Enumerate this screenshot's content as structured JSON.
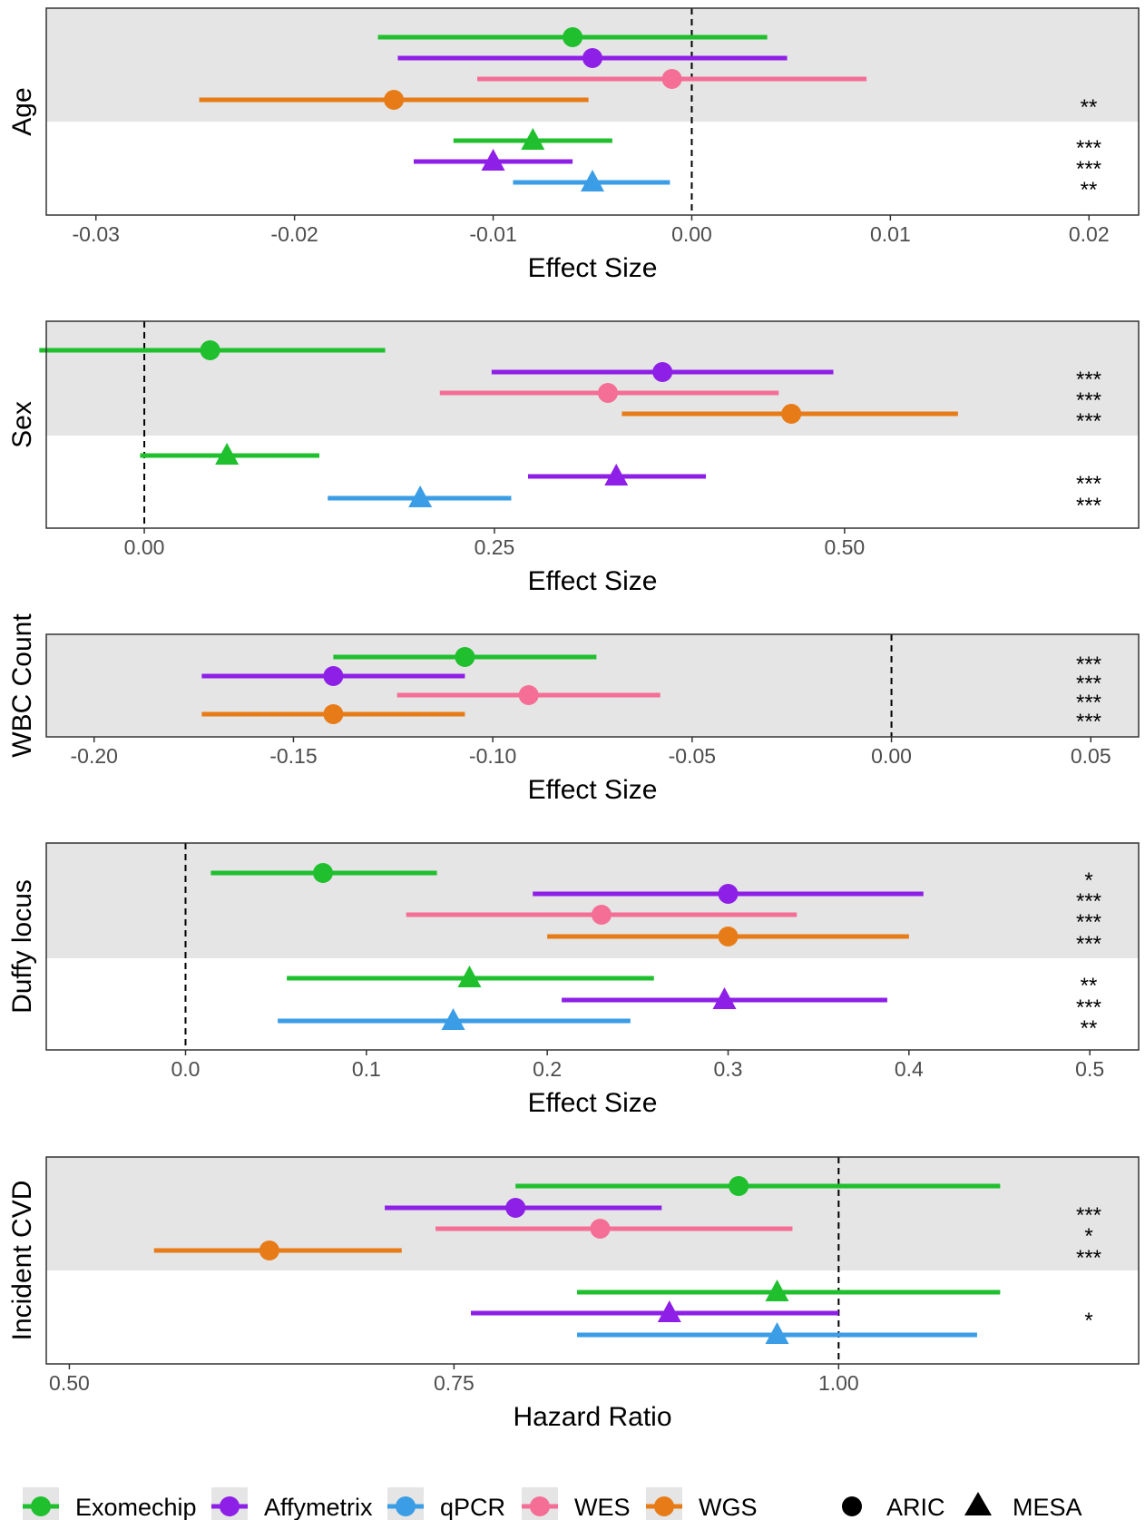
{
  "colors": {
    "Exomechip": "#1FBF2E",
    "Affymetrix": "#8E1FE6",
    "qPCR": "#3A9DE5",
    "WES": "#F46E96",
    "WGS": "#E77B17",
    "band": "#E5E5E5",
    "frame": "#333333",
    "zero": "#000000"
  },
  "legend": {
    "platforms": [
      "Exomechip",
      "Affymetrix",
      "qPCR",
      "WES",
      "WGS"
    ],
    "cohorts": [
      {
        "name": "ARIC",
        "shape": "circle"
      },
      {
        "name": "MESA",
        "shape": "triangle"
      }
    ]
  },
  "chart_data": [
    {
      "type": "forest",
      "ylabel": "Age",
      "xlabel": "Effect Size",
      "xlim": [
        -0.0325,
        0.0225
      ],
      "ticks": [
        -0.03,
        -0.02,
        -0.01,
        0.0,
        0.01,
        0.02
      ],
      "tick_labels": [
        "-0.03",
        "-0.02",
        "-0.01",
        "0.00",
        "0.01",
        "0.02"
      ],
      "ref": 0.0,
      "groups": [
        {
          "cohort": "ARIC",
          "rows": [
            {
              "platform": "Exomechip",
              "est": -0.006,
              "lo": -0.0158,
              "hi": 0.0038,
              "sig": ""
            },
            {
              "platform": "Affymetrix",
              "est": -0.005,
              "lo": -0.0148,
              "hi": 0.0048,
              "sig": ""
            },
            {
              "platform": "WES",
              "est": -0.001,
              "lo": -0.0108,
              "hi": 0.0088,
              "sig": ""
            },
            {
              "platform": "WGS",
              "est": -0.015,
              "lo": -0.0248,
              "hi": -0.0052,
              "sig": "**"
            }
          ]
        },
        {
          "cohort": "MESA",
          "rows": [
            {
              "platform": "Exomechip",
              "est": -0.008,
              "lo": -0.012,
              "hi": -0.004,
              "sig": "***"
            },
            {
              "platform": "Affymetrix",
              "est": -0.01,
              "lo": -0.014,
              "hi": -0.006,
              "sig": "***"
            },
            {
              "platform": "qPCR",
              "est": -0.005,
              "lo": -0.009,
              "hi": -0.0011,
              "sig": "**"
            }
          ]
        }
      ]
    },
    {
      "type": "forest",
      "ylabel": "Sex",
      "xlabel": "Effect Size",
      "xlim": [
        -0.07,
        0.71
      ],
      "ticks": [
        0.0,
        0.25,
        0.5
      ],
      "tick_labels": [
        "0.00",
        "0.25",
        "0.50"
      ],
      "ref": 0.0,
      "groups": [
        {
          "cohort": "ARIC",
          "rows": [
            {
              "platform": "Exomechip",
              "est": 0.047,
              "lo": -0.075,
              "hi": 0.172,
              "sig": ""
            },
            {
              "platform": "Affymetrix",
              "est": 0.37,
              "lo": 0.248,
              "hi": 0.492,
              "sig": "***"
            },
            {
              "platform": "WES",
              "est": 0.331,
              "lo": 0.211,
              "hi": 0.453,
              "sig": "***"
            },
            {
              "platform": "WGS",
              "est": 0.462,
              "lo": 0.341,
              "hi": 0.581,
              "sig": "***"
            }
          ]
        },
        {
          "cohort": "MESA",
          "rows": [
            {
              "platform": "Exomechip",
              "est": 0.059,
              "lo": -0.003,
              "hi": 0.125,
              "sig": ""
            },
            {
              "platform": "Affymetrix",
              "est": 0.337,
              "lo": 0.274,
              "hi": 0.401,
              "sig": "***"
            },
            {
              "platform": "qPCR",
              "est": 0.197,
              "lo": 0.131,
              "hi": 0.262,
              "sig": "***"
            }
          ]
        }
      ]
    },
    {
      "type": "forest",
      "ylabel": "WBC Count",
      "xlabel": "Effect Size",
      "xlim": [
        -0.212,
        0.062
      ],
      "ticks": [
        -0.2,
        -0.15,
        -0.1,
        -0.05,
        0.0,
        0.05
      ],
      "tick_labels": [
        "-0.20",
        "-0.15",
        "-0.10",
        "-0.05",
        "0.00",
        "0.05"
      ],
      "ref": 0.0,
      "groups": [
        {
          "cohort": "ARIC",
          "rows": [
            {
              "platform": "Exomechip",
              "est": -0.107,
              "lo": -0.14,
              "hi": -0.074,
              "sig": "***"
            },
            {
              "platform": "Affymetrix",
              "est": -0.14,
              "lo": -0.173,
              "hi": -0.107,
              "sig": "***"
            },
            {
              "platform": "WES",
              "est": -0.091,
              "lo": -0.124,
              "hi": -0.058,
              "sig": "***"
            },
            {
              "platform": "WGS",
              "est": -0.14,
              "lo": -0.173,
              "hi": -0.107,
              "sig": "***"
            }
          ]
        }
      ]
    },
    {
      "type": "forest",
      "ylabel": "Duffy locus",
      "xlabel": "Effect Size",
      "xlim": [
        -0.077,
        0.527
      ],
      "ticks": [
        0.0,
        0.1,
        0.2,
        0.3,
        0.4,
        0.5
      ],
      "tick_labels": [
        "0.0",
        "0.1",
        "0.2",
        "0.3",
        "0.4",
        "0.5"
      ],
      "ref": 0.0,
      "groups": [
        {
          "cohort": "ARIC",
          "rows": [
            {
              "platform": "Exomechip",
              "est": 0.076,
              "lo": 0.014,
              "hi": 0.139,
              "sig": "*"
            },
            {
              "platform": "Affymetrix",
              "est": 0.3,
              "lo": 0.192,
              "hi": 0.408,
              "sig": "***"
            },
            {
              "platform": "WES",
              "est": 0.23,
              "lo": 0.122,
              "hi": 0.338,
              "sig": "***"
            },
            {
              "platform": "WGS",
              "est": 0.3,
              "lo": 0.2,
              "hi": 0.4,
              "sig": "***"
            }
          ]
        },
        {
          "cohort": "MESA",
          "rows": [
            {
              "platform": "Exomechip",
              "est": 0.157,
              "lo": 0.056,
              "hi": 0.259,
              "sig": "**"
            },
            {
              "platform": "Affymetrix",
              "est": 0.298,
              "lo": 0.208,
              "hi": 0.388,
              "sig": "***"
            },
            {
              "platform": "qPCR",
              "est": 0.148,
              "lo": 0.051,
              "hi": 0.246,
              "sig": "**"
            }
          ]
        }
      ]
    },
    {
      "type": "forest",
      "ylabel": "Incident CVD",
      "xlabel": "Hazard Ratio",
      "xlim": [
        0.485,
        1.195
      ],
      "ticks": [
        0.5,
        0.75,
        1.0
      ],
      "tick_labels": [
        "0.50",
        "0.75",
        "1.00"
      ],
      "ref": 1.0,
      "groups": [
        {
          "cohort": "ARIC",
          "rows": [
            {
              "platform": "Exomechip",
              "est": 0.935,
              "lo": 0.79,
              "hi": 1.105,
              "sig": ""
            },
            {
              "platform": "Affymetrix",
              "est": 0.79,
              "lo": 0.705,
              "hi": 0.885,
              "sig": "***"
            },
            {
              "platform": "WES",
              "est": 0.845,
              "lo": 0.738,
              "hi": 0.97,
              "sig": "*"
            },
            {
              "platform": "WGS",
              "est": 0.63,
              "lo": 0.555,
              "hi": 0.716,
              "sig": "***"
            }
          ]
        },
        {
          "cohort": "MESA",
          "rows": [
            {
              "platform": "Exomechip",
              "est": 0.96,
              "lo": 0.83,
              "hi": 1.105,
              "sig": ""
            },
            {
              "platform": "Affymetrix",
              "est": 0.89,
              "lo": 0.761,
              "hi": 1.0,
              "sig": "*"
            },
            {
              "platform": "qPCR",
              "est": 0.96,
              "lo": 0.83,
              "hi": 1.09,
              "sig": ""
            }
          ]
        }
      ]
    }
  ]
}
